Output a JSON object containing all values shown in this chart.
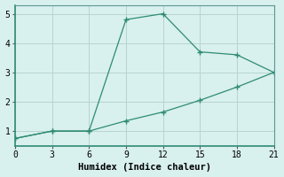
{
  "xlabel": "Humidex (Indice chaleur)",
  "line1_x": [
    0,
    3,
    6,
    9,
    12,
    15,
    18,
    21
  ],
  "line1_y": [
    0.75,
    1.0,
    1.0,
    4.8,
    5.0,
    3.7,
    3.6,
    3.0
  ],
  "line2_x": [
    0,
    3,
    6,
    9,
    12,
    15,
    18,
    21
  ],
  "line2_y": [
    0.75,
    1.0,
    1.0,
    1.35,
    1.65,
    2.05,
    2.5,
    3.0
  ],
  "line_color": "#2e8b74",
  "bg_color": "#d8f0ee",
  "grid_color": "#b8d4d0",
  "xlim": [
    0,
    21
  ],
  "ylim": [
    0.5,
    5.3
  ],
  "xticks": [
    0,
    3,
    6,
    9,
    12,
    15,
    18,
    21
  ],
  "yticks": [
    1,
    2,
    3,
    4,
    5
  ],
  "marker": "+"
}
